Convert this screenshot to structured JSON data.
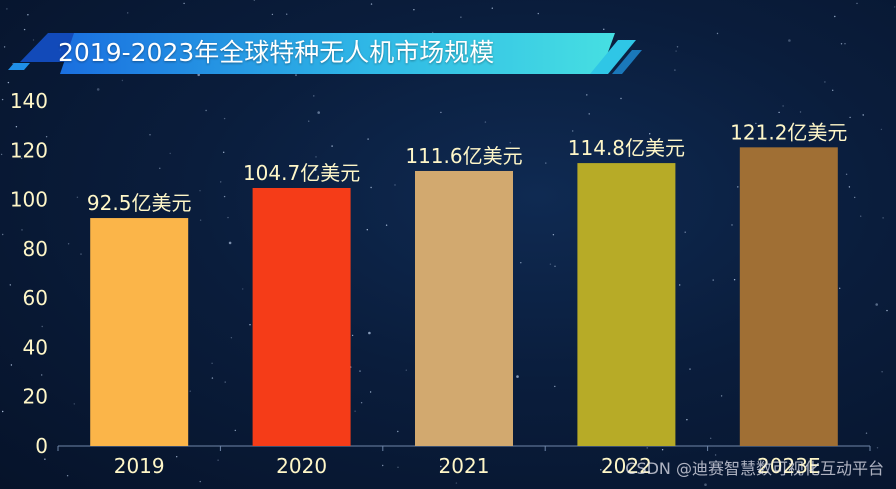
{
  "chart_data": {
    "type": "bar",
    "title": "2019-2023年全球特种无人机市场规模",
    "categories": [
      "2019",
      "2020",
      "2021",
      "2022",
      "2023E"
    ],
    "values": [
      92.5,
      104.7,
      111.6,
      114.8,
      121.2
    ],
    "data_labels": [
      "92.5亿美元",
      "104.7亿美元",
      "111.6亿美元",
      "114.8亿美元",
      "121.2亿美元"
    ],
    "bar_colors": [
      "#fbb549",
      "#f53c18",
      "#d2a96f",
      "#b7ab27",
      "#a06f34"
    ],
    "y_ticks": [
      "0",
      "20",
      "40",
      "60",
      "80",
      "100",
      "120",
      "140"
    ],
    "ylim": [
      0,
      140
    ],
    "xlabel": "",
    "ylabel": "",
    "grid": false
  },
  "watermark": "CSDN @迪赛智慧数可视化互动平台",
  "colors": {
    "background": "#0a1d3c",
    "tick_text": "#fff7c8",
    "label_text": "#fff7c8",
    "banner_start": "#1a6fe0",
    "banner_end": "#39d3e0"
  }
}
